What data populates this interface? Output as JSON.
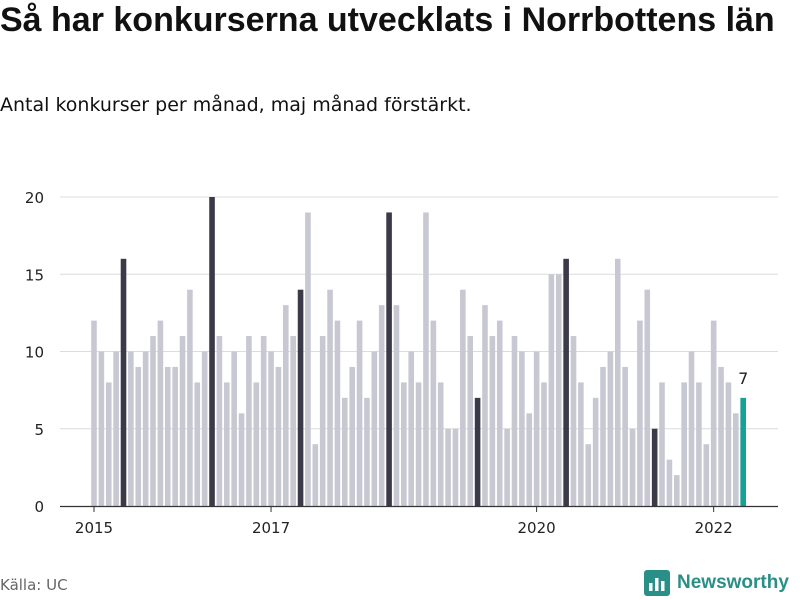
{
  "title": "Så har konkurserna utvecklats i Norrbottens län",
  "subtitle": "Antal konkurser per månad, maj månad förstärkt.",
  "source": "Källa: UC",
  "brand": {
    "name": "Newsworthy",
    "icon": "bar-chart-logo-icon"
  },
  "colors": {
    "bar": "#c8c8d3",
    "highlight": "#3c3a48",
    "current": "#16a195",
    "grid": "#dcdcdc",
    "axis": "#333333"
  },
  "chart_data": {
    "type": "bar",
    "ylim": [
      0,
      20
    ],
    "yticks": [
      0,
      5,
      10,
      15,
      20
    ],
    "xticks": [
      {
        "label": "2015",
        "index": 0
      },
      {
        "label": "2017",
        "index": 24
      },
      {
        "label": "2020",
        "index": 60
      },
      {
        "label": "2022",
        "index": 84
      }
    ],
    "highlight_indices": [
      4,
      16,
      28,
      40,
      52,
      64,
      76
    ],
    "current_index": 88,
    "current_label": "7",
    "values": [
      12,
      10,
      8,
      10,
      16,
      10,
      9,
      10,
      11,
      12,
      9,
      9,
      11,
      14,
      8,
      10,
      20,
      11,
      8,
      10,
      6,
      11,
      8,
      11,
      10,
      9,
      13,
      11,
      14,
      19,
      4,
      11,
      14,
      12,
      7,
      9,
      12,
      7,
      10,
      13,
      19,
      13,
      8,
      10,
      8,
      19,
      12,
      8,
      5,
      5,
      14,
      11,
      7,
      13,
      11,
      12,
      5,
      11,
      10,
      6,
      10,
      8,
      15,
      15,
      16,
      11,
      8,
      4,
      7,
      9,
      10,
      16,
      9,
      5,
      12,
      14,
      5,
      8,
      3,
      2,
      8,
      10,
      8,
      4,
      12,
      9,
      8,
      6,
      7
    ]
  }
}
